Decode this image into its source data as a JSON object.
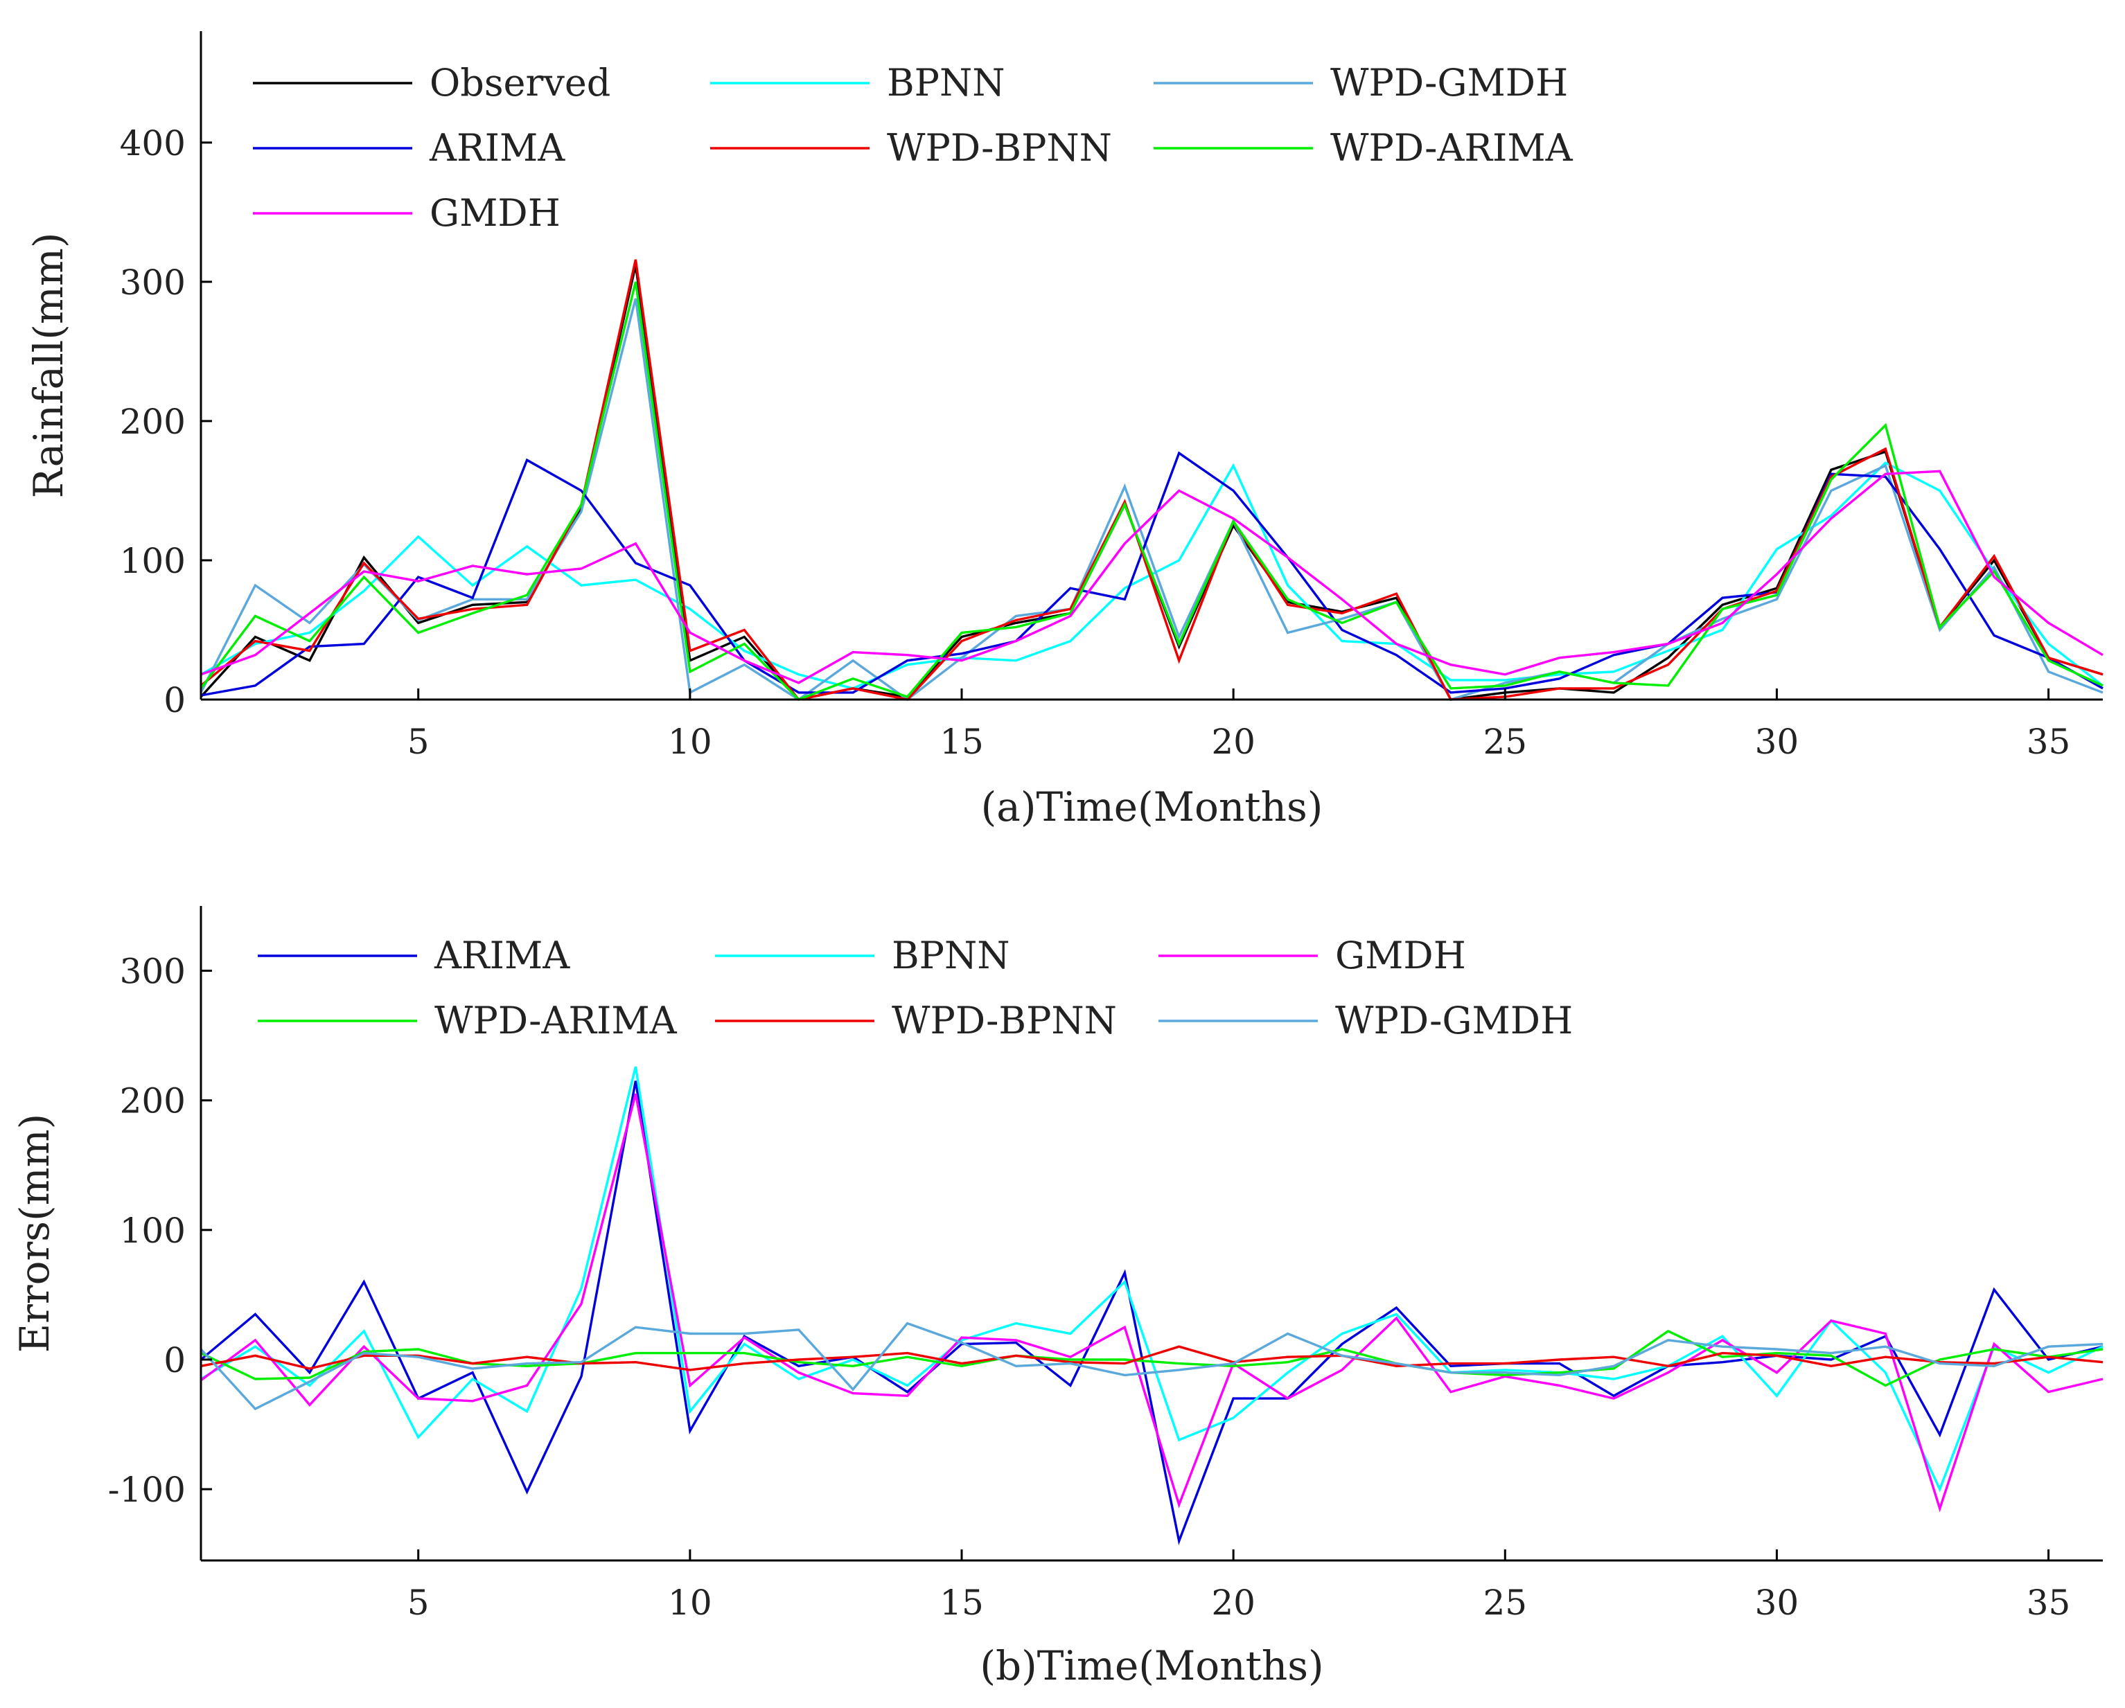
{
  "chart_data": [
    {
      "type": "line",
      "title": "",
      "xlabel": "(a)Time(Months)",
      "ylabel": "Rainfall(mm)",
      "xlim": [
        1,
        36
      ],
      "ylim": [
        0,
        480
      ],
      "xticks": [
        5,
        10,
        15,
        20,
        25,
        30,
        35
      ],
      "yticks": [
        0,
        100,
        200,
        300,
        400
      ],
      "grid": false,
      "legend": "top-left",
      "x": [
        1,
        2,
        3,
        4,
        5,
        6,
        7,
        8,
        9,
        10,
        11,
        12,
        13,
        14,
        15,
        16,
        17,
        18,
        19,
        20,
        21,
        22,
        23,
        24,
        25,
        26,
        27,
        28,
        29,
        30,
        31,
        32,
        33,
        34,
        35,
        36
      ],
      "series": [
        {
          "name": "Observed",
          "color": "#000000",
          "values": [
            2,
            45,
            28,
            102,
            55,
            68,
            70,
            137,
            312,
            28,
            45,
            0,
            8,
            2,
            45,
            55,
            62,
            140,
            38,
            125,
            70,
            63,
            73,
            0,
            5,
            8,
            5,
            30,
            68,
            80,
            165,
            178,
            52,
            100,
            30,
            18
          ]
        },
        {
          "name": "BPNN",
          "color": "#00ffff",
          "values": [
            18,
            40,
            48,
            78,
            117,
            82,
            110,
            82,
            86,
            65,
            35,
            18,
            8,
            25,
            30,
            28,
            42,
            80,
            100,
            168,
            82,
            42,
            40,
            14,
            14,
            18,
            20,
            35,
            50,
            108,
            132,
            170,
            150,
            92,
            40,
            10
          ]
        },
        {
          "name": "WPD-GMDH",
          "color": "#5aa8dc",
          "values": [
            5,
            82,
            55,
            97,
            57,
            72,
            72,
            135,
            288,
            5,
            25,
            0,
            28,
            0,
            30,
            60,
            65,
            153,
            45,
            128,
            48,
            58,
            70,
            0,
            12,
            20,
            12,
            40,
            58,
            72,
            150,
            168,
            50,
            95,
            20,
            5
          ]
        },
        {
          "name": "ARIMA",
          "color": "#0000dd",
          "values": [
            3,
            10,
            38,
            40,
            88,
            73,
            172,
            150,
            98,
            82,
            28,
            5,
            5,
            28,
            33,
            42,
            80,
            72,
            177,
            150,
            102,
            50,
            32,
            5,
            8,
            15,
            32,
            40,
            73,
            77,
            162,
            160,
            108,
            46,
            30,
            8
          ]
        },
        {
          "name": "WPD-BPNN",
          "color": "#ee0000",
          "values": [
            10,
            42,
            35,
            98,
            58,
            65,
            68,
            140,
            316,
            35,
            50,
            0,
            8,
            0,
            42,
            57,
            65,
            142,
            28,
            128,
            68,
            62,
            76,
            0,
            2,
            8,
            8,
            25,
            65,
            78,
            160,
            180,
            52,
            103,
            30,
            18
          ]
        },
        {
          "name": "WPD-ARIMA",
          "color": "#00ee00",
          "values": [
            8,
            60,
            42,
            88,
            48,
            62,
            75,
            140,
            300,
            20,
            40,
            0,
            15,
            2,
            48,
            52,
            62,
            140,
            40,
            128,
            72,
            55,
            70,
            8,
            10,
            20,
            12,
            10,
            65,
            75,
            158,
            197,
            52,
            92,
            28,
            10
          ]
        },
        {
          "name": "GMDH",
          "color": "#ff00ff",
          "values": [
            18,
            32,
            62,
            92,
            85,
            96,
            90,
            94,
            112,
            48,
            28,
            12,
            34,
            32,
            28,
            42,
            60,
            112,
            150,
            130,
            102,
            72,
            40,
            25,
            18,
            30,
            34,
            40,
            55,
            90,
            130,
            162,
            164,
            88,
            55,
            32
          ]
        }
      ]
    },
    {
      "type": "line",
      "title": "",
      "xlabel": "(b)Time(Months)",
      "ylabel": "Errors(mm)",
      "xlim": [
        1,
        36
      ],
      "ylim": [
        -155,
        350
      ],
      "xticks": [
        5,
        10,
        15,
        20,
        25,
        30,
        35
      ],
      "yticks": [
        -100,
        0,
        100,
        200,
        300
      ],
      "ytick_labels": [
        "-100",
        "0",
        "100",
        "200",
        "300"
      ],
      "grid": false,
      "legend": "top-left",
      "x": [
        1,
        2,
        3,
        4,
        5,
        6,
        7,
        8,
        9,
        10,
        11,
        12,
        13,
        14,
        15,
        16,
        17,
        18,
        19,
        20,
        21,
        22,
        23,
        24,
        25,
        26,
        27,
        28,
        29,
        30,
        31,
        32,
        33,
        34,
        35,
        36
      ],
      "series": [
        {
          "name": "ARIMA",
          "color": "#0000dd",
          "values": [
            0,
            35,
            -10,
            60,
            -30,
            -10,
            -102,
            -13,
            215,
            -55,
            18,
            -5,
            2,
            -25,
            12,
            13,
            -20,
            67,
            -140,
            -30,
            -30,
            12,
            40,
            -5,
            -3,
            -3,
            -28,
            -5,
            -2,
            3,
            0,
            18,
            -58,
            54,
            0,
            10
          ]
        },
        {
          "name": "BPNN",
          "color": "#00ffff",
          "values": [
            -15,
            10,
            -20,
            22,
            -60,
            -15,
            -40,
            55,
            226,
            -40,
            12,
            -15,
            0,
            -20,
            15,
            28,
            20,
            60,
            -62,
            -45,
            -10,
            20,
            35,
            -10,
            -8,
            -10,
            -15,
            -5,
            18,
            -28,
            30,
            -10,
            -100,
            10,
            -10,
            10
          ]
        },
        {
          "name": "GMDH",
          "color": "#ff00ff",
          "values": [
            -16,
            15,
            -35,
            10,
            -30,
            -32,
            -20,
            43,
            205,
            -20,
            17,
            -10,
            -26,
            -28,
            17,
            15,
            2,
            25,
            -112,
            -3,
            -30,
            -8,
            32,
            -25,
            -13,
            -20,
            -30,
            -10,
            15,
            -10,
            30,
            20,
            -115,
            12,
            -25,
            -15
          ]
        },
        {
          "name": "WPD-ARIMA",
          "color": "#00ee00",
          "values": [
            5,
            -15,
            -14,
            6,
            8,
            -3,
            -5,
            -3,
            5,
            5,
            5,
            -2,
            -5,
            2,
            -5,
            3,
            0,
            0,
            -3,
            -5,
            -2,
            8,
            -3,
            -10,
            -12,
            -10,
            -7,
            22,
            2,
            5,
            3,
            -20,
            0,
            8,
            2,
            8
          ]
        },
        {
          "name": "WPD-BPNN",
          "color": "#ee0000",
          "values": [
            -5,
            3,
            -7,
            3,
            3,
            -3,
            2,
            -3,
            -2,
            -8,
            -3,
            0,
            2,
            5,
            -3,
            3,
            -2,
            -3,
            10,
            -2,
            2,
            3,
            -5,
            -3,
            -3,
            0,
            2,
            -5,
            5,
            3,
            -5,
            2,
            -2,
            -3,
            2,
            -2
          ]
        },
        {
          "name": "WPD-GMDH",
          "color": "#5aa8dc",
          "values": [
            8,
            -38,
            -17,
            5,
            2,
            -7,
            -3,
            -2,
            25,
            20,
            20,
            23,
            -23,
            28,
            13,
            -5,
            -3,
            -12,
            -8,
            -3,
            20,
            3,
            -3,
            -10,
            -10,
            -12,
            -5,
            15,
            10,
            8,
            5,
            10,
            -3,
            -5,
            10,
            12
          ]
        }
      ]
    }
  ]
}
